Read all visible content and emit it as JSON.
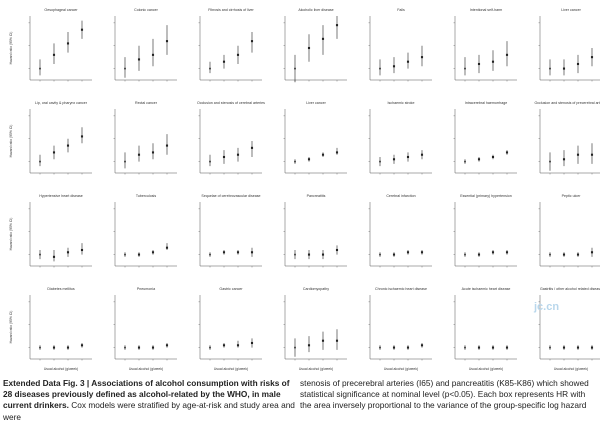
{
  "figure": {
    "ylabel": "Hazard ratio (95% CI)",
    "xlabel": "Usual alcohol (g/week)",
    "panels": [
      {
        "title": "Oesophageal cancer",
        "hr": [
          1.0,
          1.6,
          2.1,
          2.7
        ],
        "lo": [
          0.7,
          1.2,
          1.7,
          2.3
        ],
        "hi": [
          1.4,
          2.1,
          2.6,
          3.1
        ]
      },
      {
        "title": "Colonic cancer",
        "hr": [
          1.0,
          1.4,
          1.6,
          2.2
        ],
        "lo": [
          0.6,
          0.9,
          1.1,
          1.6
        ],
        "hi": [
          1.5,
          2.0,
          2.3,
          2.9
        ]
      },
      {
        "title": "Fibrosis and cirrhosis of liver",
        "hr": [
          1.0,
          1.3,
          1.6,
          2.2
        ],
        "lo": [
          0.8,
          1.0,
          1.2,
          1.7
        ],
        "hi": [
          1.3,
          1.6,
          2.0,
          2.6
        ]
      },
      {
        "title": "Alcoholic liver disease",
        "hr": [
          1.0,
          1.9,
          2.3,
          2.9
        ],
        "lo": [
          0.4,
          1.3,
          1.6,
          2.3
        ],
        "hi": [
          1.6,
          2.5,
          2.9,
          3.3
        ]
      },
      {
        "title": "Falls",
        "hr": [
          1.0,
          1.1,
          1.3,
          1.5
        ],
        "lo": [
          0.7,
          0.8,
          1.0,
          1.1
        ],
        "hi": [
          1.4,
          1.5,
          1.7,
          2.0
        ]
      },
      {
        "title": "Intentional self-harm",
        "hr": [
          1.0,
          1.2,
          1.3,
          1.6
        ],
        "lo": [
          0.7,
          0.8,
          0.9,
          1.1
        ],
        "hi": [
          1.5,
          1.6,
          1.8,
          2.2
        ]
      },
      {
        "title": "Liver cancer",
        "hr": [
          1.0,
          1.0,
          1.2,
          1.5
        ],
        "lo": [
          0.7,
          0.7,
          0.8,
          1.1
        ],
        "hi": [
          1.4,
          1.4,
          1.6,
          1.9
        ]
      },
      {
        "title": "Lip, oral cavity & pharynx cancer",
        "hr": [
          1.0,
          1.4,
          1.7,
          2.1
        ],
        "lo": [
          0.8,
          1.1,
          1.4,
          1.8
        ],
        "hi": [
          1.3,
          1.7,
          2.0,
          2.5
        ]
      },
      {
        "title": "Rectal cancer",
        "hr": [
          1.0,
          1.3,
          1.4,
          1.7
        ],
        "lo": [
          0.7,
          1.0,
          1.1,
          1.3
        ],
        "hi": [
          1.4,
          1.7,
          1.8,
          2.2
        ]
      },
      {
        "title": "Occlusion and stenosis of cerebral arteries",
        "hr": [
          1.0,
          1.2,
          1.3,
          1.6
        ],
        "lo": [
          0.8,
          0.9,
          1.0,
          1.2
        ],
        "hi": [
          1.3,
          1.5,
          1.6,
          1.9
        ]
      },
      {
        "title": "Liver cancer",
        "hr": [
          1.0,
          1.1,
          1.3,
          1.4
        ],
        "lo": [
          0.9,
          1.0,
          1.2,
          1.3
        ],
        "hi": [
          1.1,
          1.2,
          1.4,
          1.6
        ]
      },
      {
        "title": "Ischaemic stroke",
        "hr": [
          1.0,
          1.1,
          1.2,
          1.3
        ],
        "lo": [
          0.8,
          0.9,
          1.0,
          1.1
        ],
        "hi": [
          1.2,
          1.3,
          1.4,
          1.5
        ]
      },
      {
        "title": "Intracerebral haemorrhage",
        "hr": [
          1.0,
          1.1,
          1.2,
          1.4
        ],
        "lo": [
          0.9,
          1.0,
          1.1,
          1.3
        ],
        "hi": [
          1.1,
          1.2,
          1.3,
          1.5
        ]
      },
      {
        "title": "Occlusion and stenosis of precerebral arteries",
        "hr": [
          1.0,
          1.1,
          1.3,
          1.3
        ],
        "lo": [
          0.6,
          0.8,
          0.9,
          0.9
        ],
        "hi": [
          1.4,
          1.5,
          1.7,
          1.8
        ]
      },
      {
        "title": "Hypertensive heart disease",
        "hr": [
          1.0,
          0.9,
          1.1,
          1.2
        ],
        "lo": [
          0.8,
          0.7,
          0.9,
          1.0
        ],
        "hi": [
          1.2,
          1.2,
          1.3,
          1.5
        ]
      },
      {
        "title": "Tuberculosis",
        "hr": [
          1.0,
          1.0,
          1.1,
          1.3
        ],
        "lo": [
          0.9,
          0.9,
          1.0,
          1.2
        ],
        "hi": [
          1.1,
          1.1,
          1.2,
          1.5
        ]
      },
      {
        "title": "Sequelae of cerebrovascular disease",
        "hr": [
          1.0,
          1.1,
          1.1,
          1.1
        ],
        "lo": [
          0.9,
          1.0,
          1.0,
          0.9
        ],
        "hi": [
          1.1,
          1.2,
          1.2,
          1.3
        ]
      },
      {
        "title": "Pancreatitis",
        "hr": [
          1.0,
          1.0,
          1.0,
          1.2
        ],
        "lo": [
          0.8,
          0.8,
          0.8,
          1.0
        ],
        "hi": [
          1.2,
          1.2,
          1.2,
          1.4
        ]
      },
      {
        "title": "Cerebral infarction",
        "hr": [
          1.0,
          1.0,
          1.1,
          1.1
        ],
        "lo": [
          0.9,
          0.9,
          1.0,
          1.0
        ],
        "hi": [
          1.1,
          1.1,
          1.2,
          1.2
        ]
      },
      {
        "title": "Essential (primary) hypertension",
        "hr": [
          1.0,
          1.0,
          1.1,
          1.1
        ],
        "lo": [
          0.9,
          0.9,
          1.0,
          1.0
        ],
        "hi": [
          1.1,
          1.1,
          1.2,
          1.2
        ]
      },
      {
        "title": "Peptic ulcer",
        "hr": [
          1.0,
          1.0,
          1.0,
          1.1
        ],
        "lo": [
          0.9,
          0.9,
          0.9,
          0.9
        ],
        "hi": [
          1.1,
          1.1,
          1.1,
          1.3
        ]
      },
      {
        "title": "Diabetes mellitus",
        "hr": [
          1.0,
          1.0,
          1.0,
          1.1
        ],
        "lo": [
          0.9,
          0.9,
          0.9,
          1.0
        ],
        "hi": [
          1.1,
          1.1,
          1.1,
          1.2
        ]
      },
      {
        "title": "Pneumonia",
        "hr": [
          1.0,
          1.0,
          1.0,
          1.1
        ],
        "lo": [
          0.9,
          0.9,
          0.9,
          1.0
        ],
        "hi": [
          1.1,
          1.1,
          1.1,
          1.2
        ]
      },
      {
        "title": "Gastric cancer",
        "hr": [
          1.0,
          1.1,
          1.1,
          1.2
        ],
        "lo": [
          0.9,
          1.0,
          1.0,
          1.0
        ],
        "hi": [
          1.1,
          1.2,
          1.3,
          1.4
        ]
      },
      {
        "title": "Cardiomyopathy",
        "hr": [
          1.0,
          1.1,
          1.3,
          1.3
        ],
        "lo": [
          0.6,
          0.8,
          0.9,
          0.9
        ],
        "hi": [
          1.4,
          1.5,
          1.7,
          1.8
        ]
      },
      {
        "title": "Chronic ischaemic heart disease",
        "hr": [
          1.0,
          1.0,
          1.0,
          1.1
        ],
        "lo": [
          0.9,
          0.9,
          0.9,
          1.0
        ],
        "hi": [
          1.1,
          1.1,
          1.1,
          1.2
        ]
      },
      {
        "title": "Acute ischaemic heart disease",
        "hr": [
          1.0,
          1.0,
          1.0,
          1.0
        ],
        "lo": [
          0.9,
          0.9,
          0.9,
          0.9
        ],
        "hi": [
          1.1,
          1.1,
          1.1,
          1.1
        ]
      },
      {
        "title": "Gastritis / other alcohol related disease",
        "hr": [
          1.0,
          1.0,
          1.0,
          1.0
        ],
        "lo": [
          0.9,
          0.9,
          0.9,
          0.9
        ],
        "hi": [
          1.1,
          1.1,
          1.1,
          1.1
        ]
      }
    ]
  },
  "caption": {
    "label": "Extended Data Fig. 3 |",
    "title": " Associations of alcohol consumption with risks of 28 diseases previously defined as alcohol-related by the WHO, in male current drinkers.",
    "left_text": " Cox models were stratified by age-at-risk and study area and were",
    "right_text": "stenosis of precerebral arteries (I65) and pancreatitis (K85-K86) which showed statistical significance at nominal level (p<0.05). Each box represents HR with the area inversely proportional to the variance of the group-specific log hazard"
  },
  "watermark": "jc.cn",
  "colors": {
    "marker": "#222222",
    "axis": "#555555",
    "text": "#333333"
  }
}
